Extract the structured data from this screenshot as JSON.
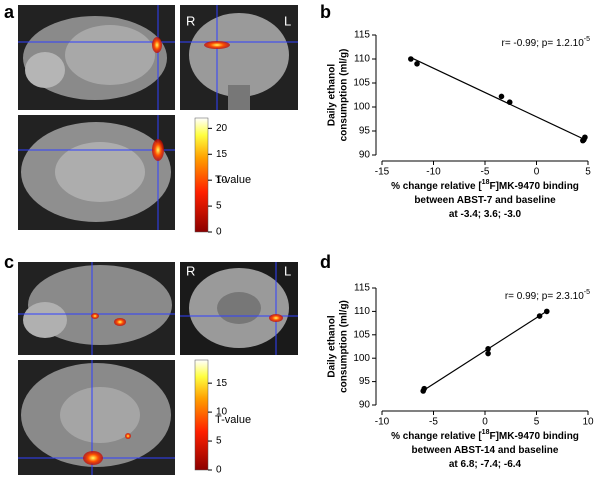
{
  "panels": [
    "a",
    "b",
    "c",
    "d"
  ],
  "images": [
    {
      "side_labels": [
        "R",
        "L"
      ],
      "colorbar": {
        "label": "T-value",
        "lim": [
          0,
          22
        ],
        "ticks": [
          0,
          5,
          10,
          15,
          20
        ]
      }
    },
    {
      "side_labels": [
        "R",
        "L"
      ],
      "colorbar": {
        "label": "T-value",
        "lim": [
          0,
          19
        ],
        "ticks": [
          0,
          5,
          10,
          15
        ]
      }
    }
  ],
  "chart_data": [
    {
      "type": "scatter",
      "annotation": [
        "r= -0.99; p= 1.2.10",
        "-5"
      ],
      "ylabel": [
        "Daily ethanol",
        "consumption (ml/g)"
      ],
      "xlabel": [
        [
          "% change relative [",
          "18",
          "F]MK-9470 binding"
        ],
        [
          "between ABST-7 and baseline"
        ],
        [
          "at -3.4; 3.6; -3.0"
        ]
      ],
      "x": [
        -12.2,
        -11.6,
        -3.4,
        -2.6,
        4.5,
        4.6,
        4.7
      ],
      "y": [
        110,
        109,
        102.2,
        101,
        93,
        93.2,
        93.7
      ],
      "trend": {
        "x": [
          -12.2,
          4.7
        ],
        "y": [
          110.3,
          93.2
        ]
      },
      "xlim": [
        -15,
        5
      ],
      "xticks": [
        -15,
        -10,
        -5,
        0,
        5
      ],
      "ylim": [
        90,
        115
      ],
      "yticks": [
        90,
        95,
        100,
        105,
        110,
        115
      ],
      "color": "#000000"
    },
    {
      "type": "scatter",
      "annotation": [
        "r= 0.99; p= 2.3.10",
        "-5"
      ],
      "ylabel": [
        "Daily ethanol",
        "consumption (ml/g)"
      ],
      "xlabel": [
        [
          "% change relative [",
          "18",
          "F]MK-9470 binding"
        ],
        [
          "between ABST-14 and baseline"
        ],
        [
          "at 6.8; -7.4; -6.4"
        ]
      ],
      "x": [
        -6,
        -5.9,
        0.3,
        0.3,
        5.3,
        6
      ],
      "y": [
        93,
        93.5,
        101,
        102,
        109,
        110
      ],
      "trend": {
        "x": [
          -6.2,
          6.1
        ],
        "y": [
          92.8,
          110.2
        ]
      },
      "xlim": [
        -10,
        10
      ],
      "xticks": [
        -10,
        -5,
        0,
        5,
        10
      ],
      "ylim": [
        90,
        115
      ],
      "yticks": [
        90,
        95,
        100,
        105,
        110,
        115
      ],
      "color": "#000000"
    }
  ]
}
